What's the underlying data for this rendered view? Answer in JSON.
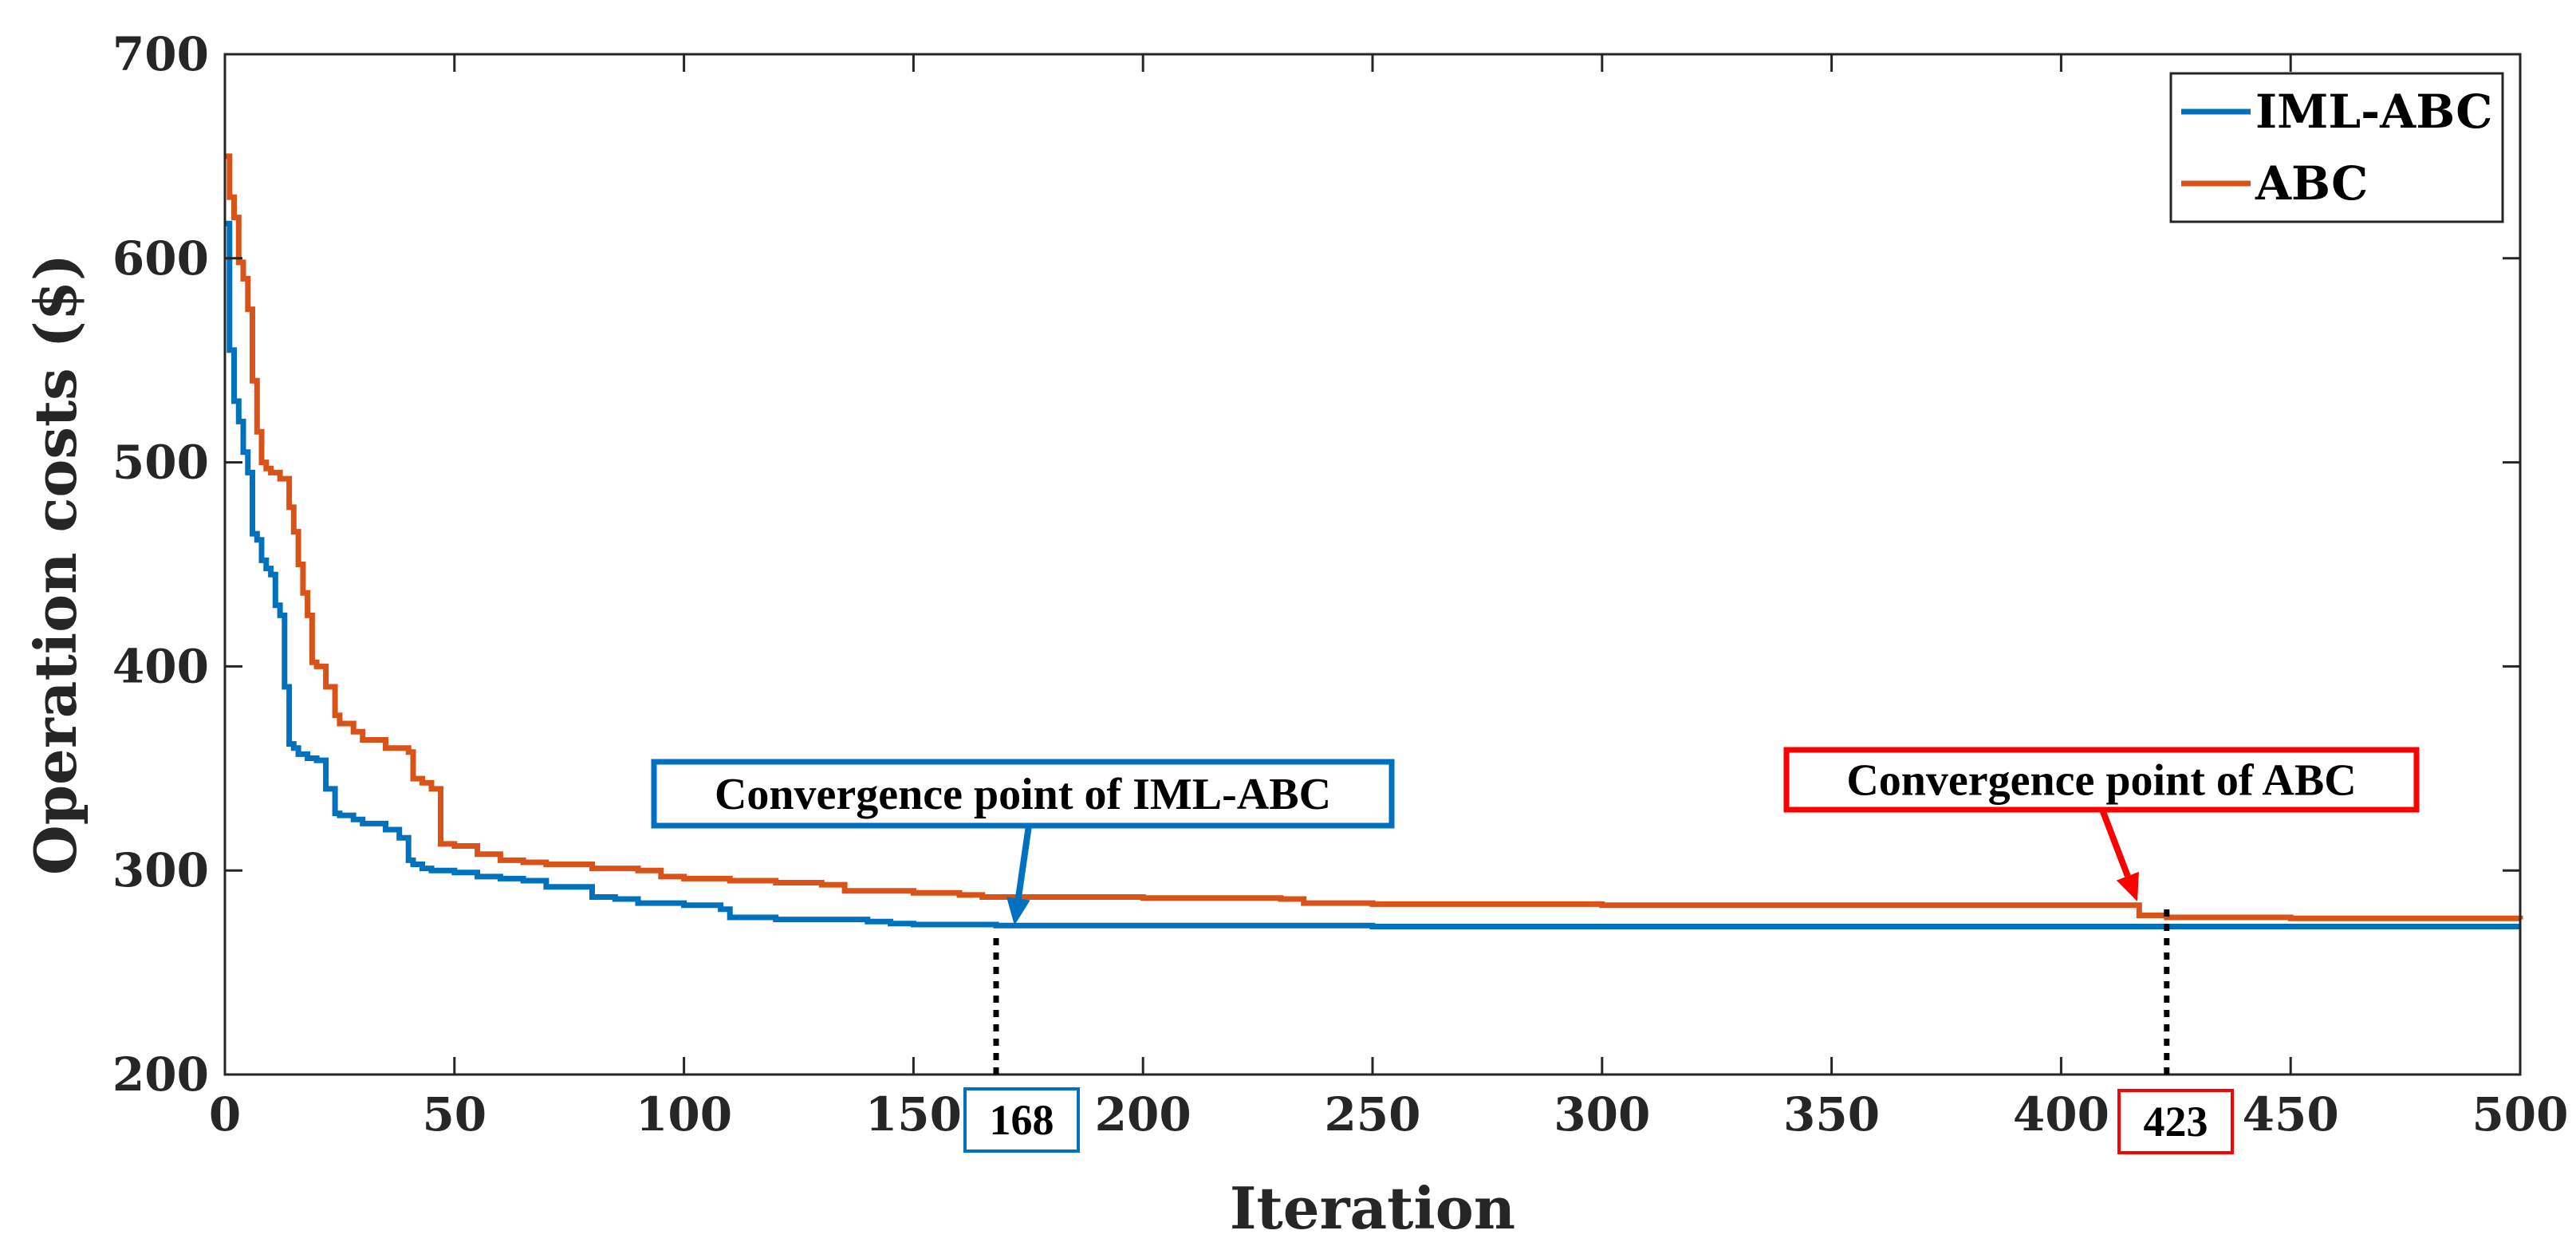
{
  "chart_data": {
    "type": "line",
    "title": "",
    "xlabel": "Iteration",
    "ylabel": "Operation costs ($)",
    "xlim": [
      0,
      500
    ],
    "ylim": [
      200,
      700
    ],
    "xticks": [
      0,
      50,
      100,
      150,
      200,
      250,
      300,
      350,
      400,
      450,
      500
    ],
    "yticks": [
      200,
      300,
      400,
      500,
      600,
      700
    ],
    "xtick_labels": [
      "0",
      "50",
      "100",
      "150",
      "200",
      "250",
      "300",
      "350",
      "400",
      "450",
      "500"
    ],
    "ytick_labels": [
      "200",
      "300",
      "400",
      "500",
      "600",
      "700"
    ],
    "grid": false,
    "legend_position": "top-right",
    "series": [
      {
        "name": "IML-ABC",
        "color": "#0072BD",
        "x": [
          0,
          1,
          2,
          3,
          4,
          5,
          6,
          7,
          8,
          9,
          10,
          11,
          12,
          13,
          14,
          15,
          16,
          18,
          20,
          22,
          24,
          25,
          28,
          30,
          35,
          38,
          40,
          41,
          43,
          45,
          50,
          55,
          60,
          65,
          70,
          80,
          85,
          90,
          100,
          108,
          110,
          120,
          130,
          140,
          145,
          150,
          168,
          200,
          250,
          300,
          350,
          400,
          450,
          500
        ],
        "y": [
          617,
          555,
          530,
          520,
          505,
          495,
          465,
          462,
          452,
          448,
          445,
          430,
          425,
          390,
          362,
          360,
          357,
          355,
          354,
          340,
          328,
          327,
          325,
          323,
          320,
          316,
          305,
          303,
          301,
          300,
          299,
          297,
          296,
          295,
          292,
          287,
          286,
          284,
          283,
          281,
          277,
          276,
          276,
          275,
          274,
          273.5,
          273,
          273,
          272.5,
          272.5,
          272.5,
          272.5,
          272.5,
          272.5
        ]
      },
      {
        "name": "ABC",
        "color": "#D95319",
        "x": [
          0,
          1,
          2,
          3,
          4,
          5,
          6,
          7,
          8,
          9,
          10,
          12,
          14,
          15,
          16,
          17,
          18,
          19,
          20,
          22,
          24,
          25,
          28,
          30,
          35,
          40,
          41,
          43,
          45,
          47,
          50,
          55,
          60,
          65,
          70,
          80,
          90,
          95,
          100,
          110,
          120,
          130,
          135,
          150,
          160,
          165,
          200,
          230,
          235,
          250,
          300,
          350,
          400,
          415,
          417,
          423,
          450,
          500
        ],
        "y": [
          650,
          630,
          620,
          598,
          590,
          575,
          540,
          515,
          500,
          497,
          495,
          492,
          478,
          466,
          450,
          436,
          425,
          402,
          400,
          390,
          376,
          372,
          368,
          364,
          360,
          358,
          345,
          343,
          340,
          313,
          312,
          308,
          305,
          304,
          303,
          301,
          300,
          297,
          296,
          295,
          294,
          293,
          290,
          289,
          288,
          287,
          286.5,
          286,
          284,
          283.5,
          283,
          283,
          283,
          283,
          278,
          277,
          276.5,
          276
        ]
      }
    ],
    "annotations": [
      {
        "text": "Convergence point of IML-ABC",
        "x": 168,
        "marker_label": "168",
        "color": "#0070C0"
      },
      {
        "text": "Convergence point of ABC",
        "x": 423,
        "marker_label": "423",
        "color": "#FF0000"
      }
    ]
  }
}
